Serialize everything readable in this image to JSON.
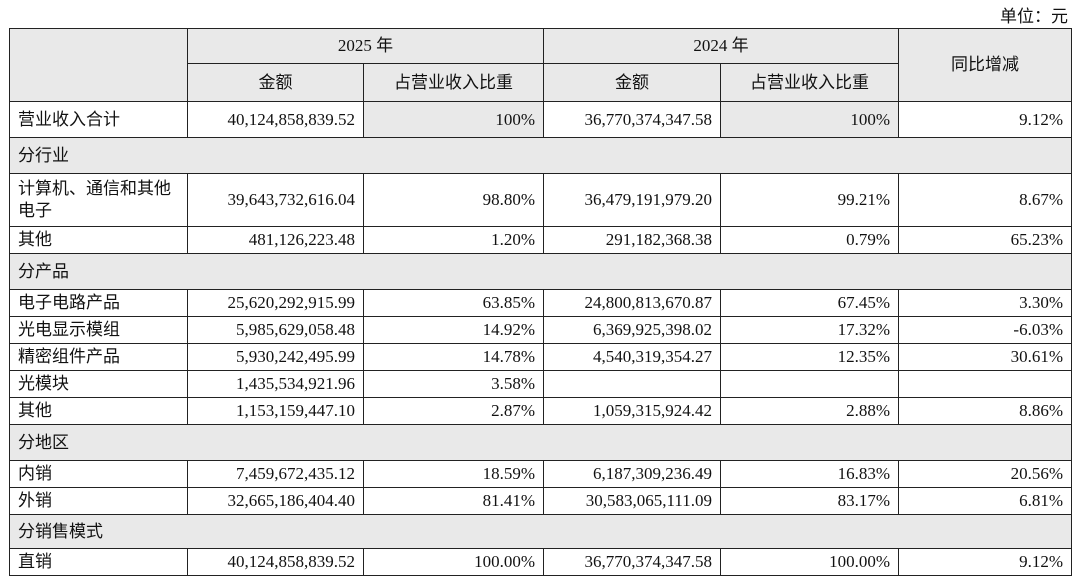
{
  "unit": "单位：元",
  "header": {
    "year1": "2025 年",
    "year2": "2024 年",
    "sub": [
      "金额",
      "占营业收入比重",
      "金额",
      "占营业收入比重"
    ],
    "yoy": "同比增减"
  },
  "rows": [
    {
      "cells": [
        "营业收入合计",
        "40,124,858,839.52",
        "100%",
        "36,770,374,347.58",
        "100%",
        "9.12%"
      ]
    },
    {
      "section": "分行业"
    },
    {
      "cells": [
        "计算机、通信和其他电子",
        "39,643,732,616.04",
        "98.80%",
        "36,479,191,979.20",
        "99.21%",
        "8.67%"
      ]
    },
    {
      "cells": [
        "其他",
        "481,126,223.48",
        "1.20%",
        "291,182,368.38",
        "0.79%",
        "65.23%"
      ]
    },
    {
      "section": "分产品"
    },
    {
      "cells": [
        "电子电路产品",
        "25,620,292,915.99",
        "63.85%",
        "24,800,813,670.87",
        "67.45%",
        "3.30%"
      ]
    },
    {
      "cells": [
        "光电显示模组",
        "5,985,629,058.48",
        "14.92%",
        "6,369,925,398.02",
        "17.32%",
        "-6.03%"
      ]
    },
    {
      "cells": [
        "精密组件产品",
        "5,930,242,495.99",
        "14.78%",
        "4,540,319,354.27",
        "12.35%",
        "30.61%"
      ]
    },
    {
      "cells": [
        "光模块",
        "1,435,534,921.96",
        "3.58%",
        null,
        null,
        null
      ]
    },
    {
      "cells": [
        "其他",
        "1,153,159,447.10",
        "2.87%",
        "1,059,315,924.42",
        "2.88%",
        "8.86%"
      ]
    },
    {
      "section": "分地区"
    },
    {
      "cells": [
        "内销",
        "7,459,672,435.12",
        "18.59%",
        "6,187,309,236.49",
        "16.83%",
        "20.56%"
      ]
    },
    {
      "cells": [
        "外销",
        "32,665,186,404.40",
        "81.41%",
        "30,583,065,111.09",
        "83.17%",
        "6.81%"
      ]
    },
    {
      "section": "分销售模式"
    },
    {
      "cells": [
        "直销",
        "40,124,858,839.52",
        "100.00%",
        "36,770,374,347.58",
        "100.00%",
        "9.12%"
      ]
    }
  ]
}
